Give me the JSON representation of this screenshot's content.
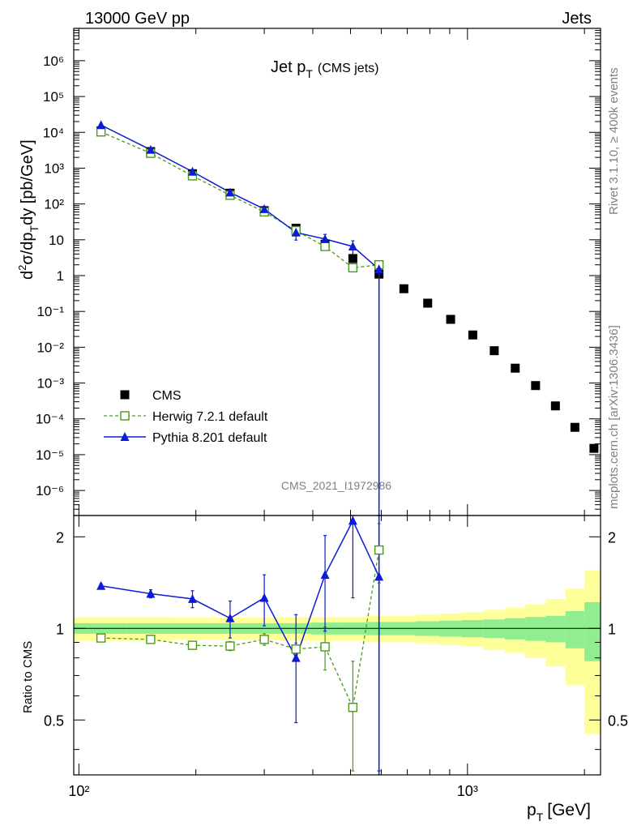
{
  "header": {
    "left": "13000 GeV pp",
    "right": "Jets"
  },
  "side": {
    "top": "Rivet 3.1.10, ≥ 400k events",
    "bottom": "mcplots.cern.ch [arXiv:1306.3436]"
  },
  "chart_data": {
    "type": "line",
    "title_main": "Jet p",
    "title_sub": "T",
    "title_paren": "(CMS jets)",
    "watermark": "CMS_2021_I1972986",
    "xlabel_main": "p",
    "xlabel_sub": "T",
    "xlabel_unit": "[GeV]",
    "ylabel_top": "d²σ/dp_T dy [pb/GeV]",
    "ylabel_bottom": "Ratio to CMS",
    "x_scale": "log",
    "xlim": [
      97,
      2200
    ],
    "ylim_top": [
      2e-07,
      8000000.0
    ],
    "y_scale_top": "log",
    "ylim_ratio": [
      0.33,
      2.35
    ],
    "y_scale_ratio": "log",
    "x_tick_labels": [
      "10²",
      "10³"
    ],
    "y_tick_labels_top": [
      "10⁶",
      "10⁵",
      "10⁴",
      "10³",
      "10²",
      "10",
      "1",
      "10⁻¹",
      "10⁻²",
      "10⁻³",
      "10⁻⁴",
      "10⁻⁵",
      "10⁻⁶"
    ],
    "y_tick_labels_ratio": [
      "2",
      "1",
      "0.5"
    ],
    "legend_position": "bottom-left",
    "series": [
      {
        "name": "CMS",
        "marker": "square-filled",
        "color": "#000000",
        "x": [
          114,
          153,
          196,
          245,
          300,
          362,
          430,
          507,
          592,
          686,
          790,
          905,
          1032,
          1172,
          1327,
          1497,
          1684,
          1890,
          2116
        ],
        "y": [
          11000,
          2900,
          700,
          200,
          65,
          21,
          7.5,
          3,
          1.1,
          0.43,
          0.17,
          0.06,
          0.022,
          0.008,
          0.0026,
          0.00085,
          0.00023,
          5.8e-05,
          1.5e-05
        ]
      },
      {
        "name": "Herwig 7.2.1 default",
        "marker": "square-open",
        "line": "dashed",
        "color": "#4a9a1a",
        "x": [
          114,
          153,
          196,
          245,
          300,
          362,
          430,
          507,
          592
        ],
        "y": [
          10300,
          2600,
          610,
          175,
          60,
          18,
          6.5,
          1.65,
          2.0
        ],
        "ratio": [
          0.93,
          0.92,
          0.88,
          0.875,
          0.92,
          0.855,
          0.87,
          0.55,
          1.81
        ],
        "ratio_err": [
          0.01,
          0.015,
          0.02,
          0.03,
          0.04,
          0.04,
          0.14,
          0.23,
          0.4
        ]
      },
      {
        "name": "Pythia 8.201 default",
        "marker": "triangle-filled",
        "line": "solid",
        "color": "#0b1bd8",
        "x": [
          114,
          153,
          196,
          245,
          300,
          362,
          430,
          507,
          592
        ],
        "y": [
          16000,
          3250,
          800,
          210,
          72,
          16,
          10.5,
          6.5,
          1.5
        ],
        "ratio": [
          1.38,
          1.3,
          1.25,
          1.08,
          1.26,
          0.8,
          1.5,
          2.26,
          1.48
        ],
        "ratio_err": [
          0.02,
          0.04,
          0.08,
          0.15,
          0.24,
          0.31,
          0.52,
          1.0,
          1.2
        ]
      }
    ],
    "bands": {
      "x_edges": [
        97,
        133,
        174,
        220,
        272,
        330,
        395,
        468,
        548,
        637,
        736,
        846,
        966,
        1100,
        1248,
        1410,
        1590,
        1788,
        2000,
        2200
      ],
      "green_half_width": [
        0.04,
        0.04,
        0.04,
        0.04,
        0.04,
        0.04,
        0.045,
        0.045,
        0.05,
        0.05,
        0.055,
        0.06,
        0.065,
        0.07,
        0.08,
        0.09,
        0.1,
        0.14,
        0.22
      ],
      "yellow_half_width": [
        0.09,
        0.09,
        0.085,
        0.085,
        0.085,
        0.09,
        0.09,
        0.09,
        0.1,
        0.1,
        0.11,
        0.12,
        0.13,
        0.15,
        0.17,
        0.2,
        0.25,
        0.35,
        0.55
      ],
      "green_color": "#90ee90",
      "yellow_color": "#ffff99"
    }
  }
}
